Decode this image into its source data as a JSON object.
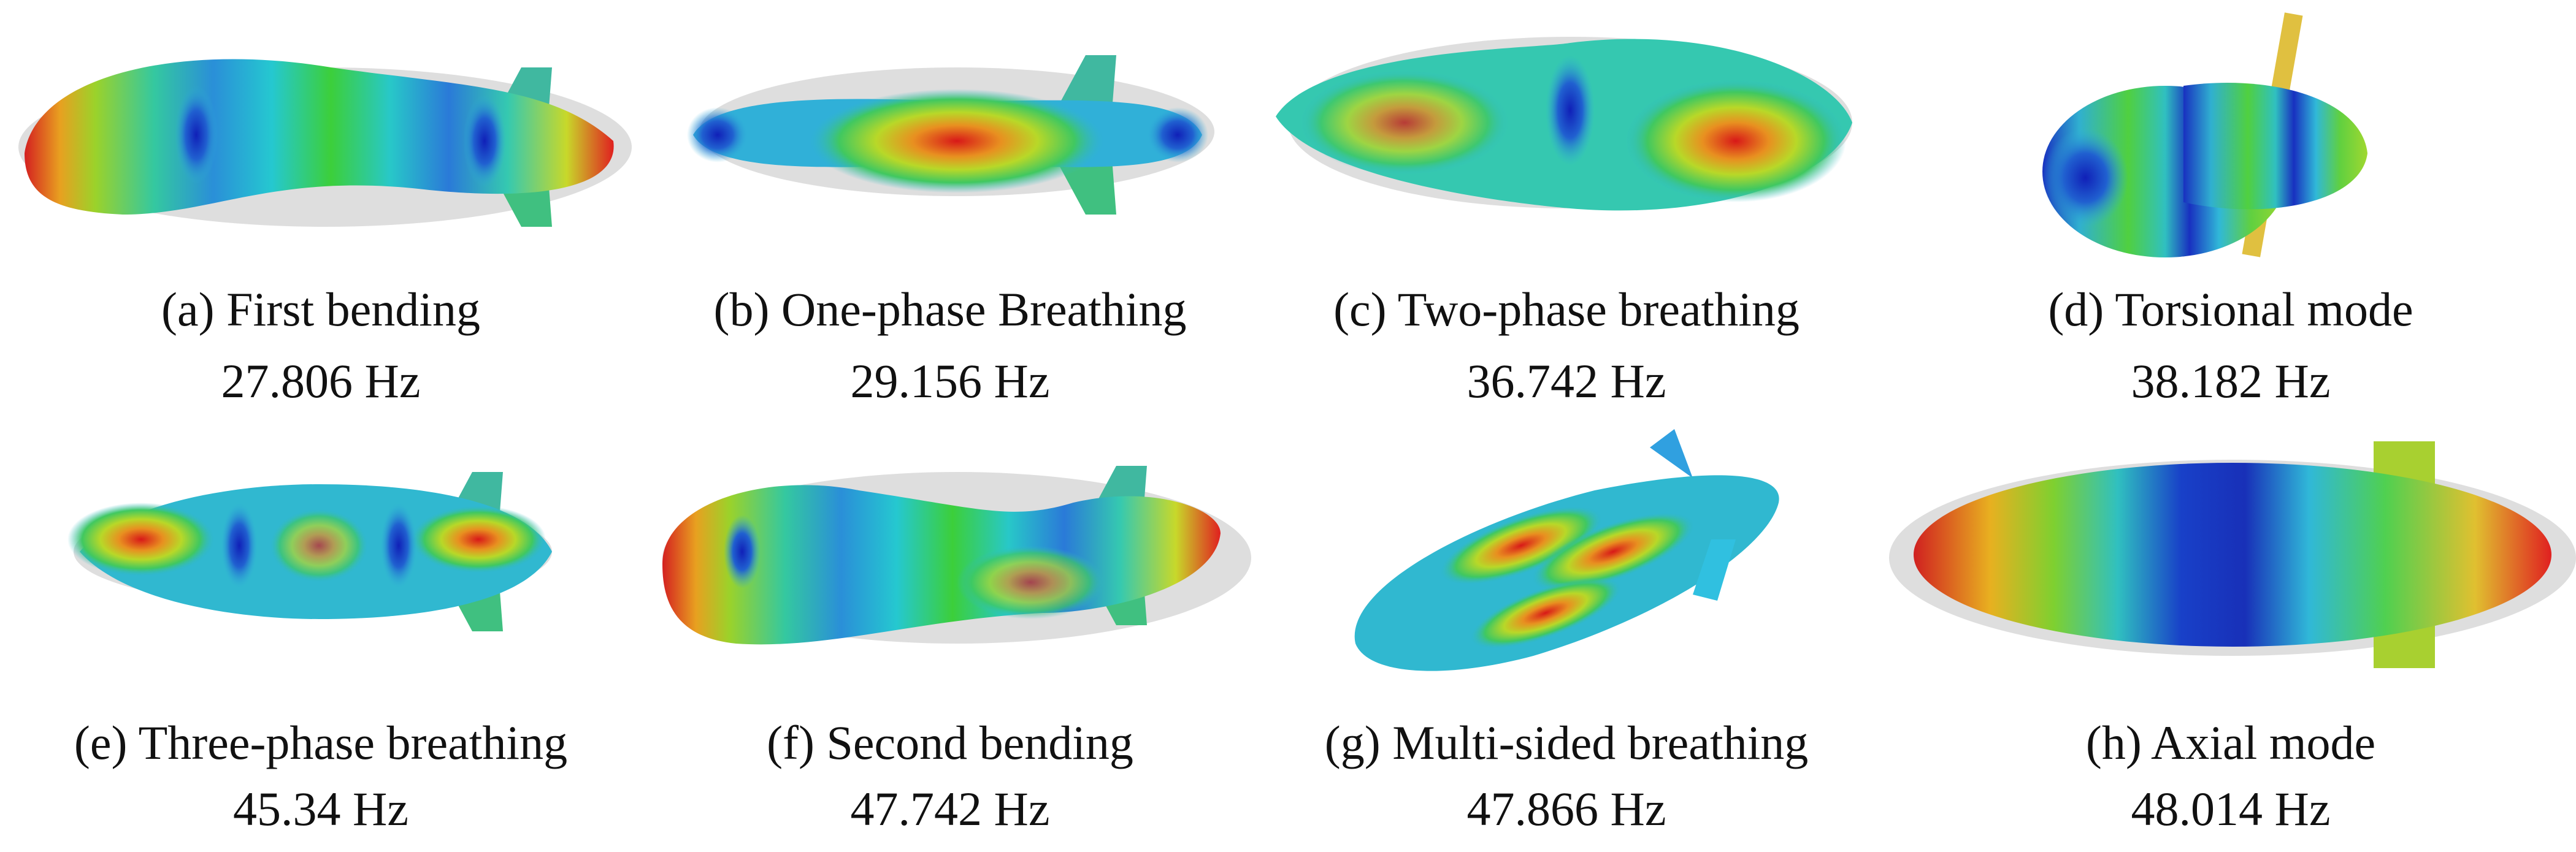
{
  "panels": [
    {
      "tag": "(a)",
      "caption": "First bending",
      "frequency": "27.806 Hz"
    },
    {
      "tag": "(b)",
      "caption": "One-phase Breathing",
      "frequency": "29.156 Hz"
    },
    {
      "tag": "(c)",
      "caption": "Two-phase breathing",
      "frequency": "36.742 Hz"
    },
    {
      "tag": "(d)",
      "caption": "Torsional mode",
      "frequency": "38.182 Hz"
    },
    {
      "tag": "(e)",
      "caption": "Three-phase breathing",
      "frequency": "45.34 Hz"
    },
    {
      "tag": "(f)",
      "caption": "Second bending",
      "frequency": "47.742 Hz"
    },
    {
      "tag": "(g)",
      "caption": "Multi-sided breathing",
      "frequency": "47.866 Hz"
    },
    {
      "tag": "(h)",
      "caption": "Axial mode",
      "frequency": "48.014 Hz"
    }
  ]
}
